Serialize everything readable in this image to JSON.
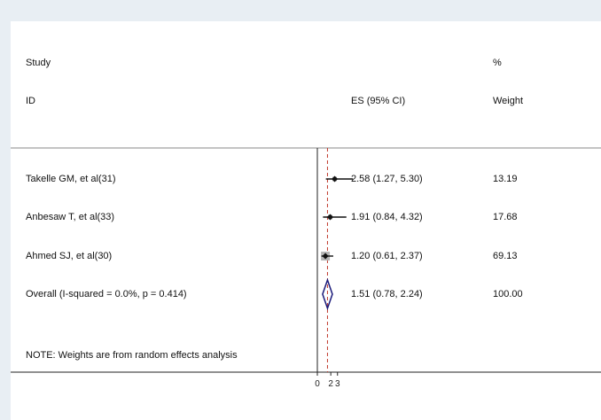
{
  "chart_data": {
    "type": "forest",
    "headers": {
      "study_line1": "Study",
      "study_line2": "ID",
      "es": "ES (95% CI)",
      "weight_line1": "%",
      "weight_line2": "Weight"
    },
    "studies": [
      {
        "label": "Takelle GM, et al(31)",
        "es": 2.58,
        "lower": 1.27,
        "upper": 5.3,
        "es_text": "2.58 (1.27, 5.30)",
        "weight": 13.19,
        "weight_text": "13.19"
      },
      {
        "label": "Anbesaw T, et al(33)",
        "es": 1.91,
        "lower": 0.84,
        "upper": 4.32,
        "es_text": "1.91 (0.84, 4.32)",
        "weight": 17.68,
        "weight_text": "17.68"
      },
      {
        "label": "Ahmed SJ, et al(30)",
        "es": 1.2,
        "lower": 0.61,
        "upper": 2.37,
        "es_text": "1.20 (0.61, 2.37)",
        "weight": 69.13,
        "weight_text": "69.13"
      }
    ],
    "overall": {
      "label": "Overall  (I-squared = 0.0%, p = 0.414)",
      "es": 1.51,
      "lower": 0.78,
      "upper": 2.24,
      "es_text": "1.51 (0.78, 2.24)",
      "weight_text": "100.00"
    },
    "note": "NOTE: Weights are from random effects analysis",
    "x_ticks": [
      {
        "value": 0,
        "label": "0"
      },
      {
        "value": 2,
        "label": "2"
      },
      {
        "value": 3,
        "label": "3"
      }
    ],
    "null_line": 0,
    "xlim": [
      0,
      6.33
    ],
    "colors": {
      "background": "#e8eef3",
      "plot": "#ffffff",
      "overall_line": "#c0392b",
      "diamond": "#1a1a7a",
      "weight_box": "#b5b5b5"
    }
  }
}
